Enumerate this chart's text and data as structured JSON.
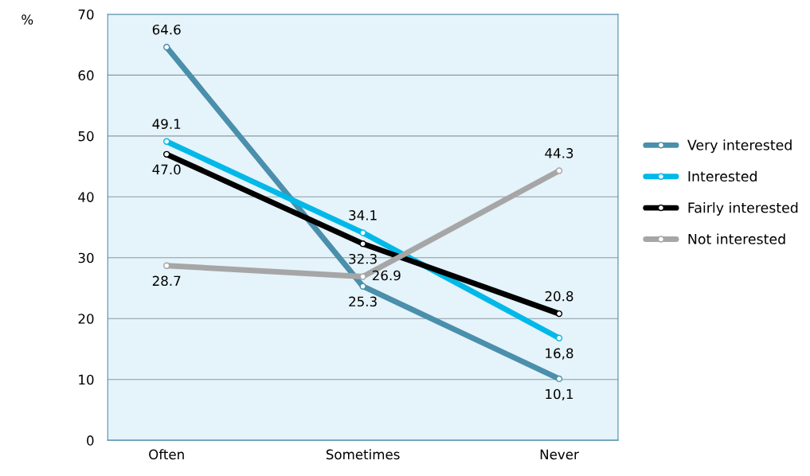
{
  "chart_data": {
    "type": "line",
    "ylabel": "%",
    "categories": [
      "Often",
      "Sometimes",
      "Never"
    ],
    "series": [
      {
        "name": "Very interested",
        "color": "#4a8fab",
        "values": [
          64.6,
          25.3,
          10.1
        ],
        "value_labels": [
          "64.6",
          "25.3",
          "10,1"
        ]
      },
      {
        "name": "Interested",
        "color": "#00b9e8",
        "values": [
          49.1,
          34.1,
          16.8
        ],
        "value_labels": [
          "49.1",
          "34.1",
          "16,8"
        ]
      },
      {
        "name": "Fairly interested",
        "color": "#000000",
        "values": [
          47.0,
          32.3,
          20.8
        ],
        "value_labels": [
          "47.0",
          "32.3",
          "20.8"
        ]
      },
      {
        "name": "Not interested",
        "color": "#a6a6a6",
        "values": [
          28.7,
          26.9,
          44.3
        ],
        "value_labels": [
          "28.7",
          "26.9",
          "44.3"
        ]
      }
    ],
    "ylim": [
      0,
      70
    ],
    "yticks": [
      0,
      10,
      20,
      30,
      40,
      50,
      60,
      70
    ],
    "grid": "y",
    "legend": "right",
    "marker": "circle",
    "line_style": "solid"
  }
}
